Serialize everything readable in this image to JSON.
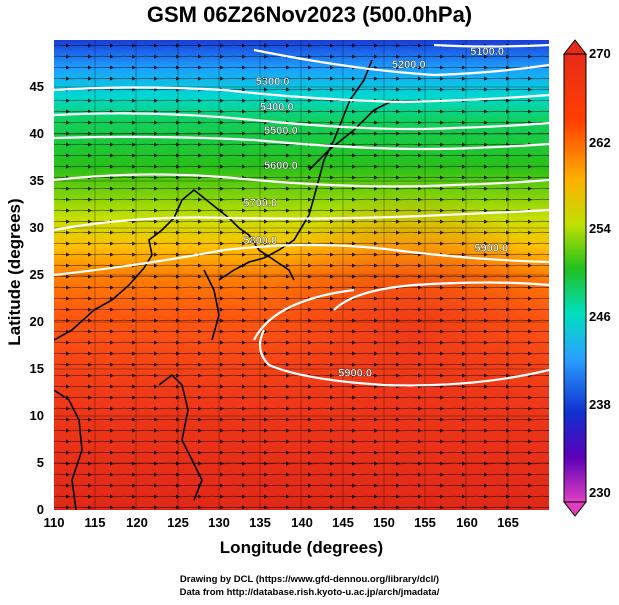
{
  "title": "GSM 06Z26Nov2023 (500.0hPa)",
  "chart_data": {
    "type": "heatmap",
    "xlabel": "Longitude (degrees)",
    "ylabel": "Latitude  (degrees)",
    "xlim": [
      110,
      170
    ],
    "ylim": [
      0,
      50
    ],
    "x_ticks": [
      "110",
      "115",
      "120",
      "125",
      "130",
      "135",
      "140",
      "145",
      "150",
      "155",
      "160",
      "165"
    ],
    "y_ticks": [
      "0",
      "5",
      "10",
      "15",
      "20",
      "25",
      "30",
      "35",
      "40",
      "45"
    ],
    "colorbar": {
      "range": [
        230,
        270
      ],
      "tick_labels": [
        "230",
        "238",
        "246",
        "254",
        "262",
        "270"
      ],
      "colors": [
        "#e040c0",
        "#5a00b8",
        "#1030d0",
        "#2aa0ff",
        "#00e0c0",
        "#20c020",
        "#c0e000",
        "#ffb000",
        "#ff4000",
        "#e82a1a"
      ]
    },
    "contour_labels": [
      {
        "text": "5100.0",
        "lon": 162.5,
        "lat": 48.4
      },
      {
        "text": "5200.0",
        "lon": 153.0,
        "lat": 47.0
      },
      {
        "text": "5300.0",
        "lon": 136.5,
        "lat": 45.2
      },
      {
        "text": "5400.0",
        "lon": 137.0,
        "lat": 42.5
      },
      {
        "text": "5500.0",
        "lon": 137.5,
        "lat": 40.0
      },
      {
        "text": "5600.0",
        "lon": 137.5,
        "lat": 36.3
      },
      {
        "text": "5700.0",
        "lon": 135.0,
        "lat": 32.3
      },
      {
        "text": "5800.0",
        "lon": 135.0,
        "lat": 28.3
      },
      {
        "text": "5900.0",
        "lon": 163.0,
        "lat": 27.5
      },
      {
        "text": "5900.0",
        "lon": 146.5,
        "lat": 14.2
      }
    ],
    "contours_m": [
      5100,
      5200,
      5300,
      5400,
      5500,
      5600,
      5700,
      5800,
      5900
    ],
    "grid": true
  },
  "credits": {
    "line1": "Drawing by DCL (https://www.gfd-dennou.org/library/dcl/)",
    "line2": "Data from http://database.rish.kyoto-u.ac.jp/arch/jmadata/"
  }
}
